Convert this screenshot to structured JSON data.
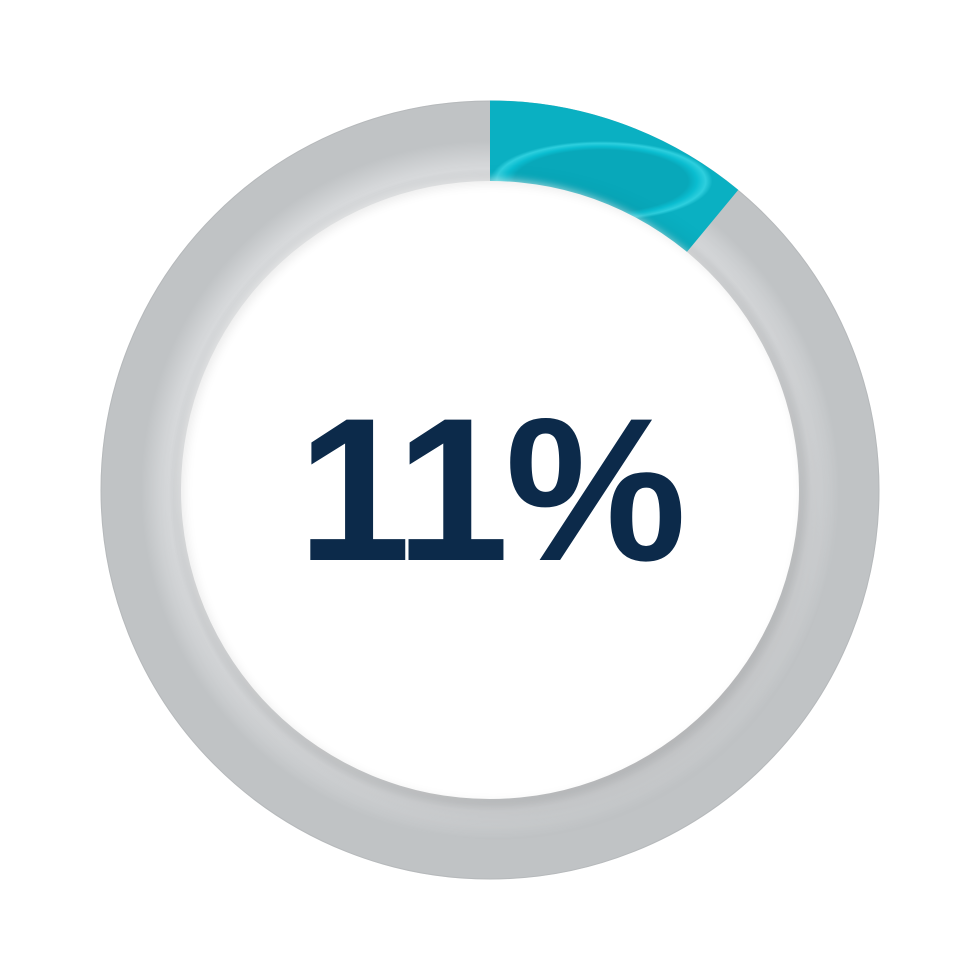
{
  "gauge": {
    "type": "radial-progress",
    "value": 11,
    "display_label": "11%",
    "track_color": "#b8bcbf",
    "track_highlight_color": "#d8dadc",
    "progress_color": "#0abdd0",
    "progress_highlight_color": "#3dd4e3",
    "inner_circle_color": "#ffffff",
    "label_color": "#0c2a4a",
    "label_fontsize": 204,
    "outer_diameter": 780,
    "inner_diameter": 618,
    "ring_thickness": 81,
    "start_angle_deg": 0,
    "sweep_direction": "clockwise",
    "background": "transparent"
  }
}
